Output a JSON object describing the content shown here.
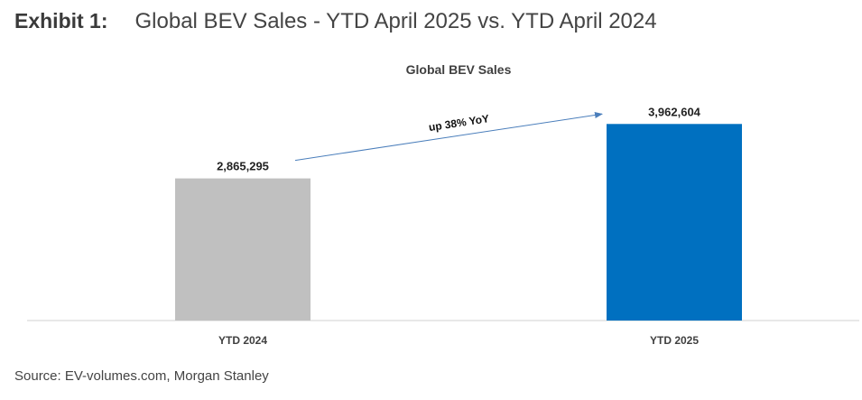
{
  "exhibit": {
    "label": "Exhibit 1:",
    "title": "Global BEV Sales - YTD April 2025 vs. YTD April 2024"
  },
  "source": "Source: EV-volumes.com, Morgan Stanley",
  "colors": {
    "ytd_2024": "#c0c0c0",
    "ytd_2025": "#0070c0",
    "arrow": "#4a7ebb",
    "axis": "#d0d0d0"
  },
  "chart_data": {
    "type": "bar",
    "title": "Global BEV Sales",
    "categories": [
      "YTD 2024",
      "YTD 2025"
    ],
    "values": [
      2865295,
      3962604
    ],
    "value_labels": [
      "2,865,295",
      "3,962,604"
    ],
    "ylim": [
      0,
      4150000
    ],
    "xlabel": "",
    "ylabel": "",
    "grid": false,
    "annotation": {
      "text": "up 38% YoY",
      "from": "YTD 2024",
      "to": "YTD 2025"
    }
  }
}
